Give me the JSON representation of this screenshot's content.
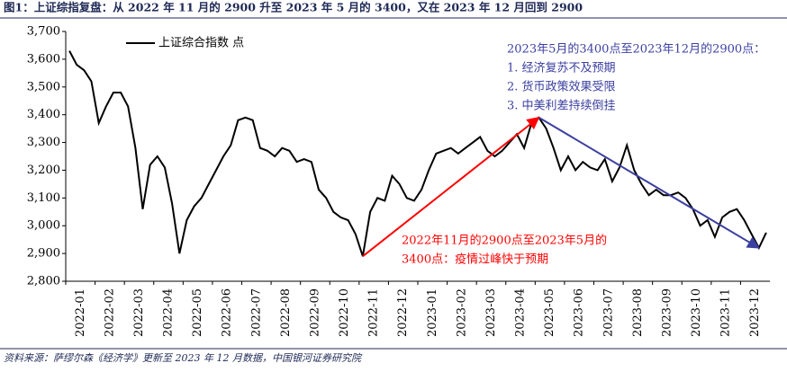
{
  "title": "图1：上证综指复盘：从 2022 年 11 月的 2900 升至 2023 年 5 月的 3400，又在 2023 年 12 月回到 2900",
  "source": "资料来源：萨缪尔森《经济学》更新至 2023 年 12 月数据，中国银河证券研究院",
  "chart_data": {
    "type": "line",
    "categories": [
      "2022-01",
      null,
      null,
      null,
      "2022-02",
      null,
      null,
      null,
      "2022-03",
      null,
      null,
      null,
      "2022-04",
      null,
      null,
      null,
      "2022-05",
      null,
      null,
      null,
      "2022-06",
      null,
      null,
      null,
      "2022-07",
      null,
      null,
      null,
      "2022-08",
      null,
      null,
      null,
      "2022-09",
      null,
      null,
      null,
      "2022-10",
      null,
      null,
      null,
      "2022-11",
      null,
      null,
      null,
      "2022-12",
      null,
      null,
      null,
      "2023-01",
      null,
      null,
      null,
      "2023-02",
      null,
      null,
      null,
      "2023-03",
      null,
      null,
      null,
      "2023-04",
      null,
      null,
      null,
      "2023-05",
      null,
      null,
      null,
      "2023-06",
      null,
      null,
      null,
      "2023-07",
      null,
      null,
      null,
      "2023-08",
      null,
      null,
      null,
      "2023-09",
      null,
      null,
      null,
      "2023-10",
      null,
      null,
      null,
      "2023-11",
      null,
      null,
      null,
      "2023-12",
      null,
      null,
      null
    ],
    "series": [
      {
        "name": "上证综合指数 点",
        "color": "#000000",
        "values": [
          3630,
          3580,
          3560,
          3520,
          3370,
          3430,
          3480,
          3480,
          3430,
          3280,
          3060,
          3220,
          3250,
          3210,
          3080,
          2900,
          3020,
          3070,
          3100,
          3150,
          3200,
          3250,
          3290,
          3380,
          3390,
          3380,
          3280,
          3270,
          3250,
          3280,
          3270,
          3230,
          3240,
          3230,
          3130,
          3100,
          3050,
          3030,
          3020,
          2970,
          2890,
          3050,
          3100,
          3090,
          3180,
          3150,
          3100,
          3090,
          3130,
          3200,
          3260,
          3270,
          3280,
          3260,
          3280,
          3300,
          3320,
          3270,
          3250,
          3270,
          3300,
          3330,
          3280,
          3370,
          3390,
          3350,
          3280,
          3200,
          3250,
          3200,
          3230,
          3210,
          3200,
          3240,
          3160,
          3210,
          3290,
          3200,
          3150,
          3110,
          3130,
          3110,
          3110,
          3120,
          3100,
          3060,
          3000,
          3020,
          2960,
          3030,
          3050,
          3060,
          3020,
          2970,
          2920,
          2975
        ]
      }
    ],
    "ylim": [
      2800,
      3700
    ],
    "yticks": [
      {
        "value": 2800,
        "label": "2,800"
      },
      {
        "value": 2900,
        "label": "2,900"
      },
      {
        "value": 3000,
        "label": "3,000"
      },
      {
        "value": 3100,
        "label": "3,100"
      },
      {
        "value": 3200,
        "label": "3,200"
      },
      {
        "value": 3300,
        "label": "3,300"
      },
      {
        "value": 3400,
        "label": "3,400"
      },
      {
        "value": 3500,
        "label": "3,500"
      },
      {
        "value": 3600,
        "label": "3,600"
      },
      {
        "value": 3700,
        "label": "3,700"
      }
    ],
    "annotations": [
      {
        "lines": [
          "2023年5月的3400点至2023年12月的2900点：",
          "1. 经济复苏不及预期",
          "2. 货币政策效果受限",
          "3. 中美利差持续倒挂"
        ],
        "color": "#3b3fa0"
      },
      {
        "lines": [
          "2022年11月的2900点至2023年5月的",
          "3400点：疫情过峰快于预期"
        ],
        "color": "#ff0000"
      }
    ]
  }
}
